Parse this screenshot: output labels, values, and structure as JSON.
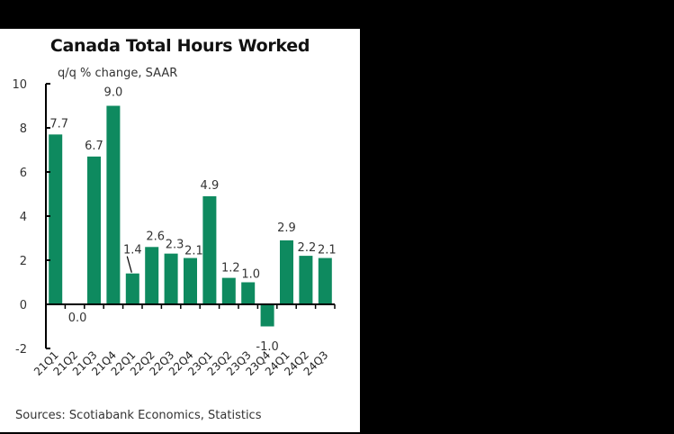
{
  "chart_data": {
    "type": "bar",
    "title": "Canada Total Hours Worked",
    "subtitle": "q/q % change, SAAR",
    "xlabel": "",
    "ylabel": "",
    "categories": [
      "21Q1",
      "21Q2",
      "21Q3",
      "21Q4",
      "22Q1",
      "22Q2",
      "22Q3",
      "22Q4",
      "23Q1",
      "23Q2",
      "23Q3",
      "23Q4",
      "24Q1",
      "24Q2",
      "24Q3"
    ],
    "values": [
      7.7,
      0.0,
      6.7,
      9.0,
      1.4,
      2.6,
      2.3,
      2.1,
      4.9,
      1.2,
      1.0,
      -1.0,
      2.9,
      2.2,
      2.1
    ],
    "data_labels": [
      "7.7",
      "0.0",
      "6.7",
      "9.0",
      "1.4",
      "2.6",
      "2.3",
      "2.1",
      "4.9",
      "1.2",
      "1.0",
      "-1.0",
      "2.9",
      "2.2",
      "2.1"
    ],
    "ylim": [
      -2,
      10
    ],
    "yticks": [
      -2,
      0,
      2,
      4,
      6,
      8,
      10
    ],
    "grid": false,
    "legend": null,
    "bar_color": "#0E8A5F",
    "source": "Sources: Scotiabank Economics, Statistics"
  }
}
